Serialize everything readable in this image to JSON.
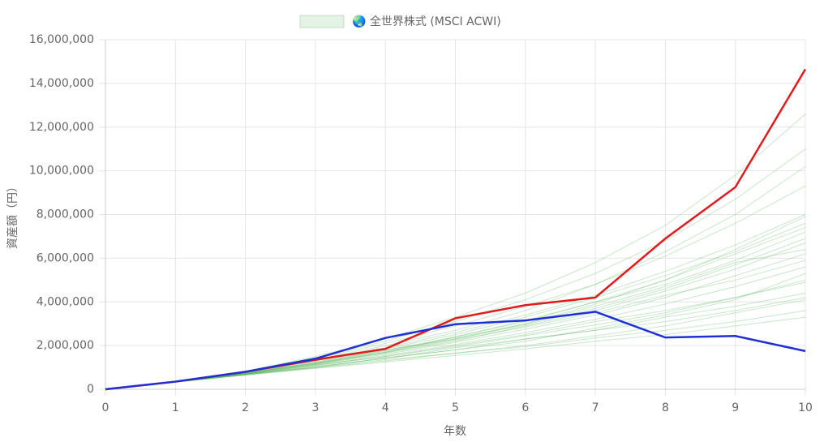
{
  "chart_data": {
    "type": "line",
    "xlabel": "年数",
    "ylabel": "資産額（円）",
    "x": [
      0,
      1,
      2,
      3,
      4,
      5,
      6,
      7,
      8,
      9,
      10
    ],
    "xlim": [
      0,
      10
    ],
    "xticks": [
      0,
      1,
      2,
      3,
      4,
      5,
      6,
      7,
      8,
      9,
      10
    ],
    "ylim": [
      0,
      16000000
    ],
    "yticks": [
      0,
      {
        "value": 2000000,
        "label": "2,000,000"
      },
      {
        "value": 4000000,
        "label": "4,000,000"
      },
      {
        "value": 6000000,
        "label": "6,000,000"
      },
      {
        "value": 8000000,
        "label": "8,000,000"
      },
      {
        "value": 10000000,
        "label": "10,000,000"
      },
      {
        "value": 12000000,
        "label": "12,000,000"
      },
      {
        "value": 14000000,
        "label": "14,000,000"
      },
      {
        "value": 16000000,
        "label": "16,000,000"
      }
    ],
    "grid": true,
    "legend": "top",
    "series": [
      {
        "name": "🌏 全世界株式 (MSCI ACWI)",
        "color": "rgba(76,175,80,0.3)",
        "values": [
          0,
          340000,
          700000,
          1100000,
          1550000,
          2050000,
          2600000,
          3200000,
          3900000,
          4700000,
          5600000
        ]
      },
      {
        "color": "rgba(76,175,80,0.3)",
        "values": [
          0,
          350000,
          780000,
          1300000,
          1900000,
          2600000,
          3400000,
          4300000,
          5400000,
          6600000,
          8000000
        ]
      },
      {
        "color": "rgba(76,175,80,0.3)",
        "values": [
          0,
          330000,
          650000,
          950000,
          1250000,
          1550000,
          1850000,
          2200000,
          2500000,
          2900000,
          3300000
        ]
      },
      {
        "color": "rgba(76,175,80,0.3)",
        "values": [
          0,
          345000,
          760000,
          1250000,
          1800000,
          2300000,
          3000000,
          3900000,
          5000000,
          6400000,
          7900000
        ]
      },
      {
        "color": "rgba(76,175,80,0.3)",
        "values": [
          0,
          335000,
          680000,
          1050000,
          1400000,
          1900000,
          2300000,
          2700000,
          3300000,
          3800000,
          4400000
        ]
      },
      {
        "color": "rgba(76,175,80,0.3)",
        "values": [
          0,
          350000,
          800000,
          1400000,
          2100000,
          2900000,
          3800000,
          4800000,
          6300000,
          8000000,
          10200000
        ]
      },
      {
        "color": "rgba(76,175,80,0.3)",
        "values": [
          0,
          340000,
          720000,
          1150000,
          1650000,
          2200000,
          2900000,
          3600000,
          4500000,
          5500000,
          6700000
        ]
      },
      {
        "color": "rgba(76,175,80,0.3)",
        "values": [
          0,
          330000,
          660000,
          1000000,
          1350000,
          1650000,
          2000000,
          2450000,
          2900000,
          3500000,
          4100000
        ]
      },
      {
        "color": "rgba(76,175,80,0.3)",
        "values": [
          0,
          345000,
          740000,
          1200000,
          1700000,
          2400000,
          3100000,
          4000000,
          4800000,
          5900000,
          7200000
        ]
      },
      {
        "color": "rgba(76,175,80,0.3)",
        "values": [
          0,
          340000,
          700000,
          1120000,
          1500000,
          2000000,
          2500000,
          3100000,
          3600000,
          4200000,
          5000000
        ]
      },
      {
        "color": "rgba(76,175,80,0.3)",
        "values": [
          0,
          355000,
          820000,
          1450000,
          2200000,
          3100000,
          4100000,
          5300000,
          6800000,
          8700000,
          11000000
        ]
      },
      {
        "color": "rgba(76,175,80,0.3)",
        "values": [
          0,
          335000,
          690000,
          1080000,
          1500000,
          1950000,
          2450000,
          2950000,
          3500000,
          4200000,
          4900000
        ]
      },
      {
        "color": "rgba(76,175,80,0.3)",
        "values": [
          0,
          342000,
          730000,
          1180000,
          1700000,
          2300000,
          2950000,
          3700000,
          4600000,
          5700000,
          6900000
        ]
      },
      {
        "color": "rgba(76,175,80,0.3)",
        "values": [
          0,
          338000,
          700000,
          1000000,
          1450000,
          1800000,
          2200000,
          2800000,
          3400000,
          4100000,
          5300000
        ]
      },
      {
        "color": "rgba(76,175,80,0.3)",
        "values": [
          0,
          348000,
          770000,
          1300000,
          1850000,
          2500000,
          3300000,
          4200000,
          5200000,
          6300000,
          7600000
        ]
      },
      {
        "color": "rgba(76,175,80,0.3)",
        "values": [
          0,
          352000,
          800000,
          1350000,
          2000000,
          2700000,
          3600000,
          4800000,
          6100000,
          7600000,
          9300000
        ]
      },
      {
        "color": "rgba(76,175,80,0.3)",
        "values": [
          0,
          336000,
          670000,
          1030000,
          1420000,
          1800000,
          2300000,
          2700000,
          3100000,
          3600000,
          4200000
        ]
      },
      {
        "color": "rgba(76,175,80,0.3)",
        "values": [
          0,
          344000,
          740000,
          1200000,
          1750000,
          2350000,
          3000000,
          3800000,
          4700000,
          5800000,
          6400000
        ]
      },
      {
        "color": "rgba(76,175,80,0.3)",
        "values": [
          0,
          358000,
          830000,
          1500000,
          2300000,
          3300000,
          4400000,
          5800000,
          7500000,
          9800000,
          12600000
        ]
      },
      {
        "color": "rgba(76,175,80,0.3)",
        "values": [
          0,
          340000,
          710000,
          1140000,
          1600000,
          2150000,
          2750000,
          3400000,
          4200000,
          5200000,
          6200000
        ]
      },
      {
        "color": "rgba(76,175,80,0.3)",
        "values": [
          0,
          332000,
          660000,
          980000,
          1300000,
          1650000,
          1950000,
          2350000,
          2700000,
          3100000,
          3600000
        ]
      },
      {
        "color": "rgba(76,175,80,0.3)",
        "values": [
          0,
          346000,
          750000,
          1230000,
          1780000,
          2400000,
          3150000,
          4000000,
          5000000,
          6200000,
          7400000
        ]
      },
      {
        "color": "rgba(76,175,80,0.3)",
        "values": [
          0,
          343000,
          735000,
          1170000,
          1680000,
          2250000,
          2850000,
          3500000,
          4300000,
          5000000,
          5900000
        ]
      },
      {
        "color": "#e31a1c",
        "values": [
          0,
          350000,
          800000,
          1350000,
          1850000,
          3250000,
          3850000,
          4200000,
          6900000,
          9250000,
          14650000
        ]
      },
      {
        "color": "#1f2fd6",
        "values": [
          0,
          350000,
          800000,
          1400000,
          2350000,
          2980000,
          3150000,
          3550000,
          2370000,
          2440000,
          1750000
        ]
      }
    ]
  }
}
